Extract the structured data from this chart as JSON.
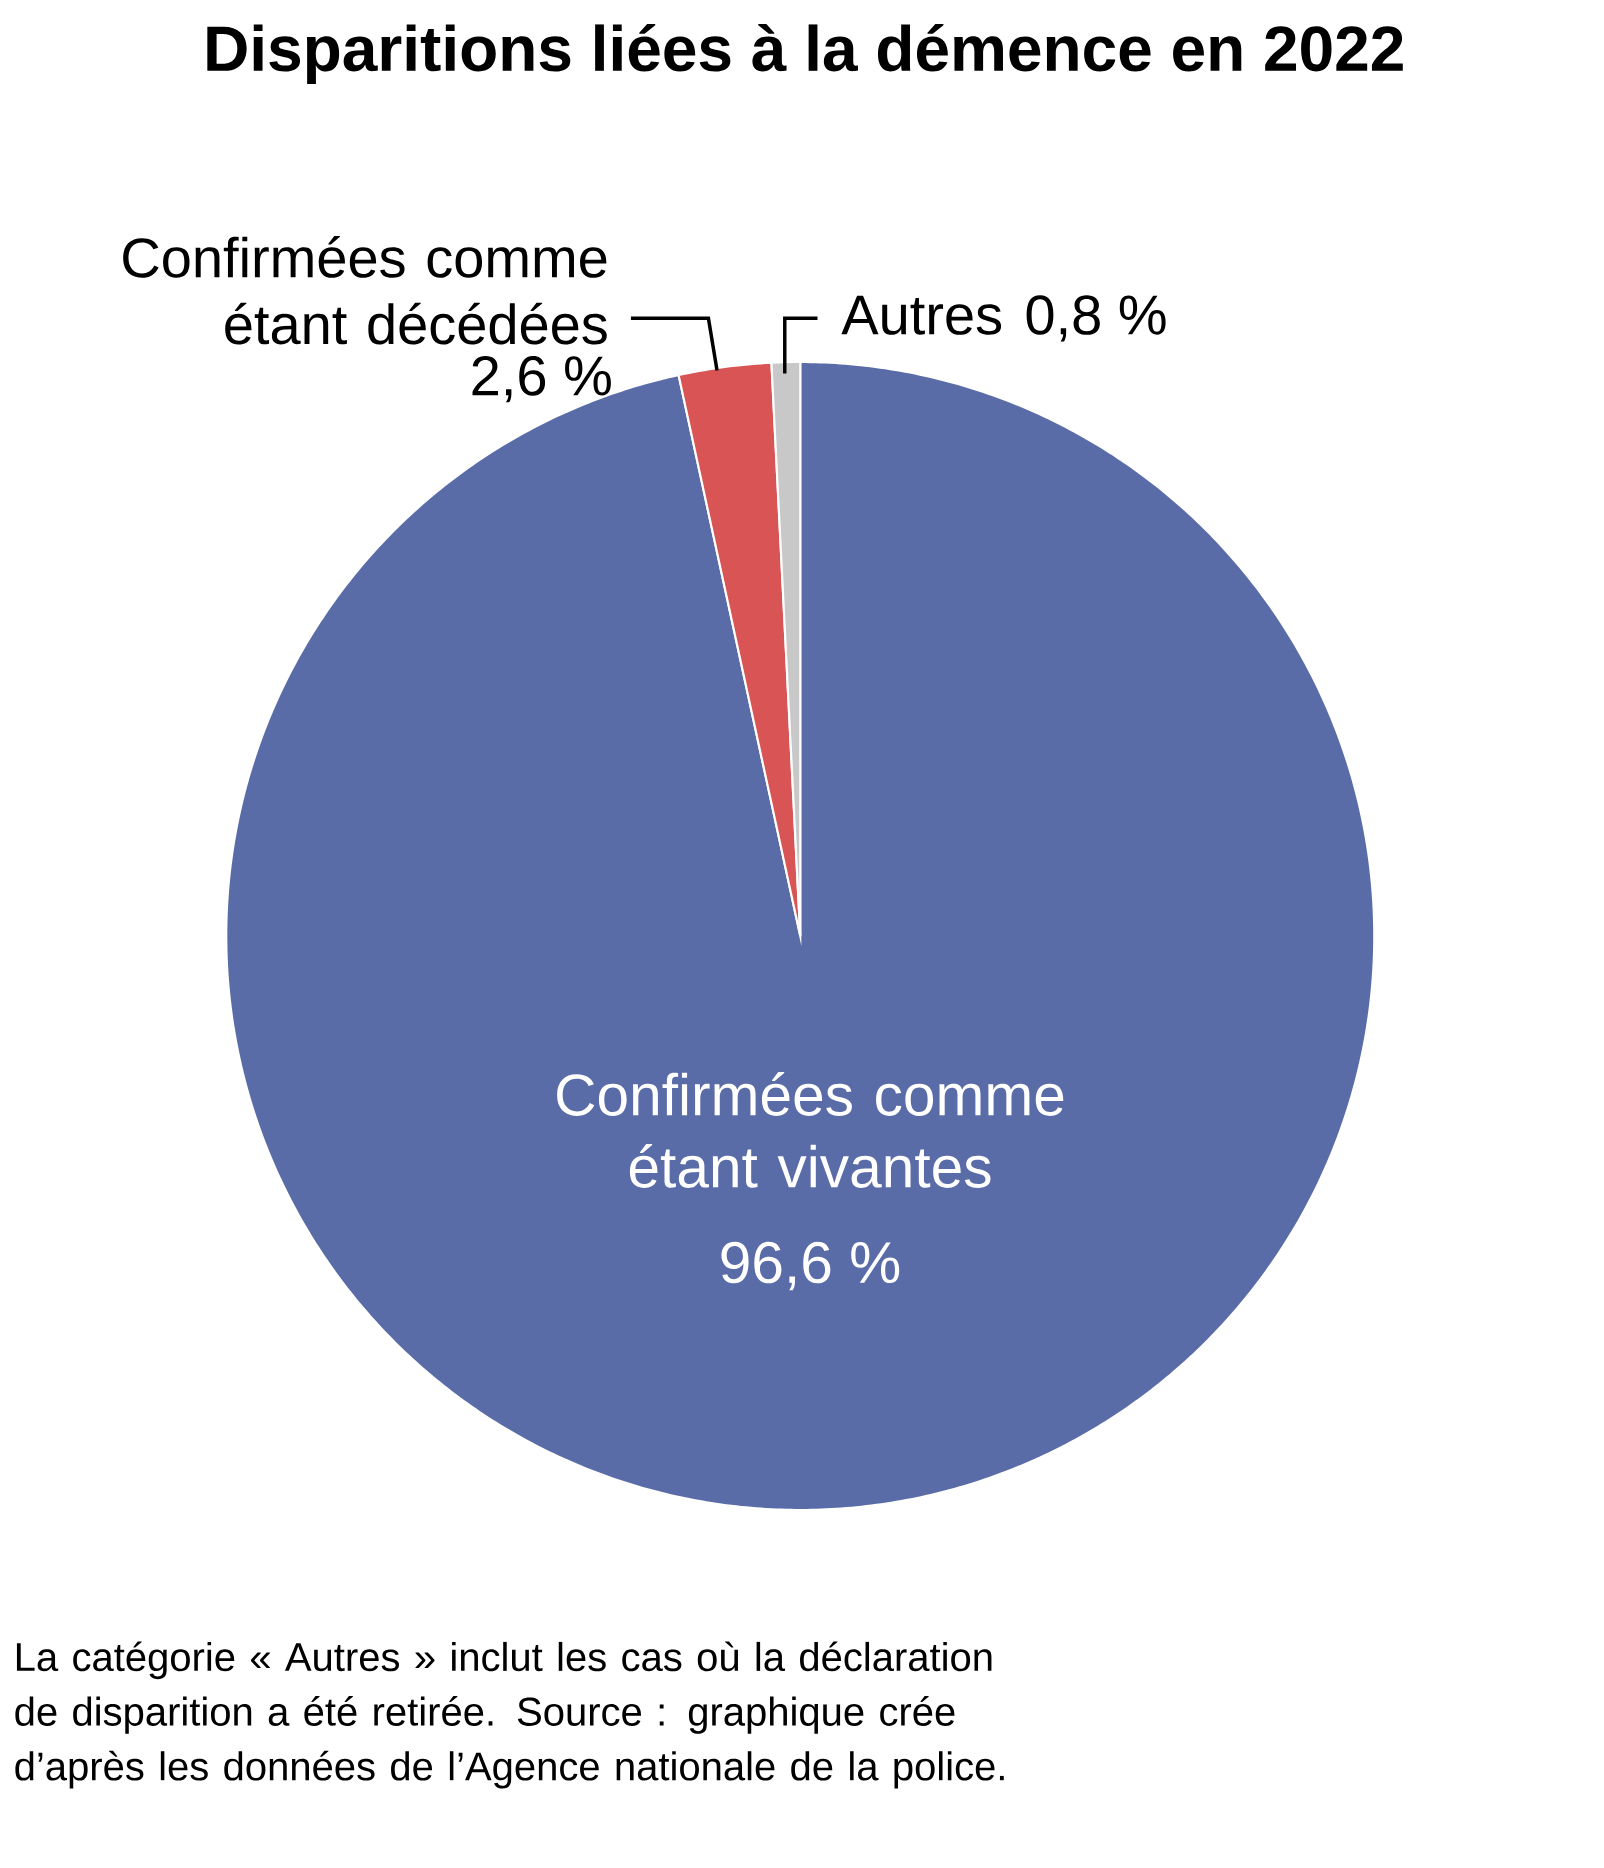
{
  "chart_data": {
    "type": "pie",
    "title": "Disparitions liées à la démence en 2022",
    "categories": [
      "Confirmées comme étant vivantes",
      "Confirmées comme étant décédées",
      "Autres"
    ],
    "values": [
      96.6,
      2.6,
      0.8
    ],
    "value_labels": [
      "96,6 %",
      "2,6 %",
      "0,8 %"
    ],
    "colors": [
      "#5a6ca8",
      "#d95555",
      "#c8c8c8"
    ],
    "annotations": [
      "La catégorie « Autres » inclut les cas où la déclaration de disparition a été retirée. Source : graphique crée d’après les données de l’Agence nationale de la police."
    ]
  }
}
